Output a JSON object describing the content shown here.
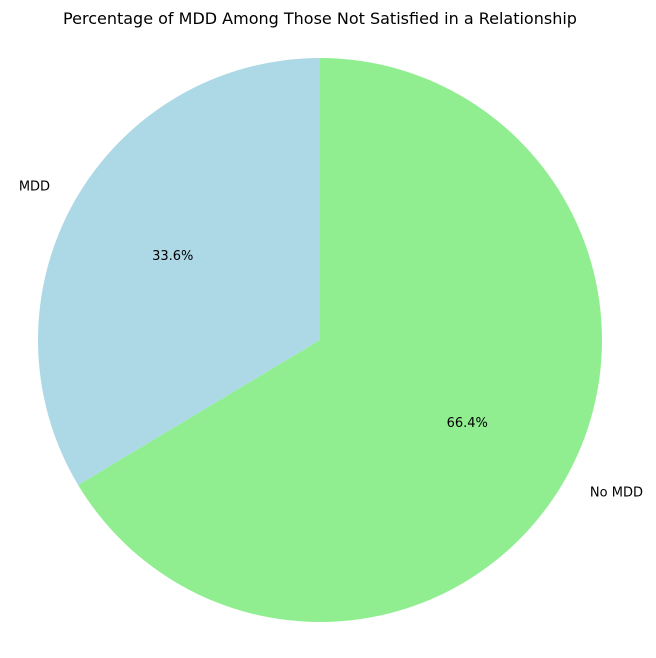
{
  "chart_data": {
    "type": "pie",
    "title": "Percentage of MDD Among Those Not Satisfied in a Relationship",
    "slices": [
      {
        "label": "MDD",
        "value": 33.6,
        "pct_label": "33.6%",
        "color": "#add8e6"
      },
      {
        "label": "No MDD",
        "value": 66.4,
        "pct_label": "66.4%",
        "color": "#90ee90"
      }
    ],
    "start_angle_deg": 90,
    "direction": "counterclockwise",
    "legend": "none"
  }
}
